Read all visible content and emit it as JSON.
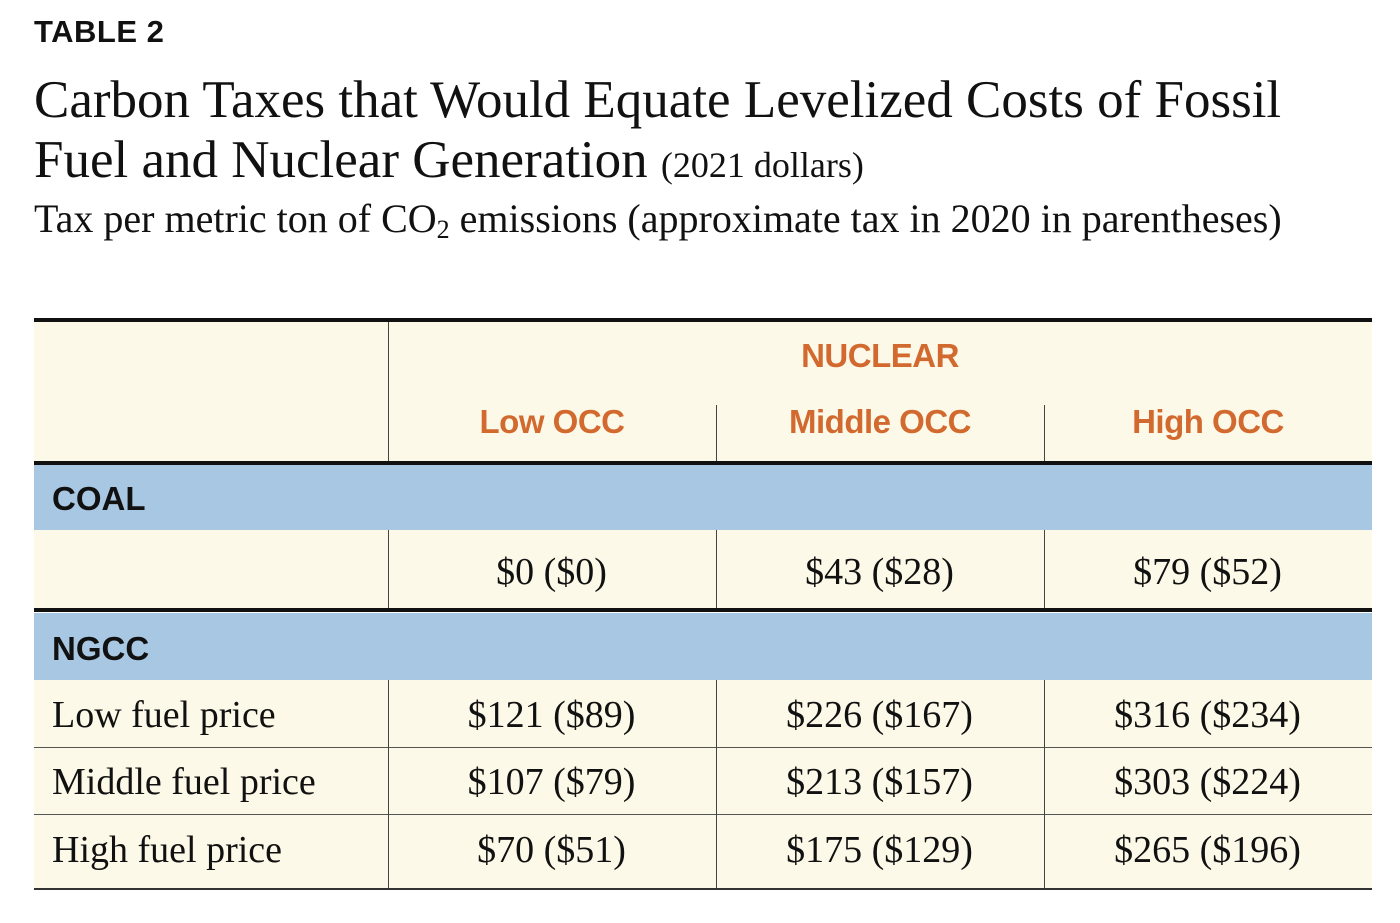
{
  "header": {
    "label": "TABLE 2",
    "title": "Carbon Taxes that Would Equate Levelized Costs of Fossil Fuel and Nuclear Generation",
    "title_note": "(2021 dollars)",
    "subtitle": {
      "before": "Tax per metric ton of CO",
      "subscript": "2",
      "after": " emissions (approximate tax in 2020 in parentheses)"
    }
  },
  "table": {
    "group": "NUCLEAR",
    "columns": [
      "Low OCC",
      "Middle OCC",
      "High OCC"
    ],
    "sections": [
      {
        "name": "COAL",
        "rows": [
          {
            "cells": [
              "$0 ($0)",
              "$43 ($28)",
              "$79 ($52)"
            ]
          }
        ]
      },
      {
        "name": "NGCC",
        "rows": [
          {
            "label": "Low fuel price",
            "cells": [
              "$121 ($89)",
              "$226 ($167)",
              "$316 ($234)"
            ]
          },
          {
            "label": "Middle fuel price",
            "cells": [
              "$107 ($79)",
              "$213 ($157)",
              "$303 ($224)"
            ]
          },
          {
            "label": "High fuel price",
            "cells": [
              "$70 ($51)",
              "$175 ($129)",
              "$265 ($196)"
            ]
          }
        ]
      }
    ]
  }
}
